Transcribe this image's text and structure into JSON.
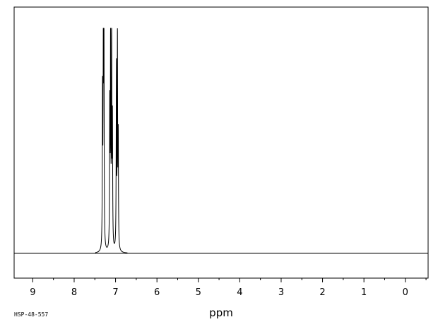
{
  "chart_data": {
    "type": "line",
    "title": "",
    "xlabel": "ppm",
    "ylabel": "",
    "sample_code": "HSP-48-557",
    "x_reversed": true,
    "xlim": [
      9.45,
      -0.55
    ],
    "ylim": [
      -0.1,
      1.0
    ],
    "grid": false,
    "x_ticks": [
      9,
      8,
      7,
      6,
      5,
      4,
      3,
      2,
      1,
      0
    ],
    "tick_labels": [
      "9",
      "8",
      "7",
      "6",
      "5",
      "4",
      "3",
      "2",
      "1",
      "0"
    ],
    "baseline": 0,
    "peaks": [
      {
        "ppm": 7.315,
        "height": 0.68
      },
      {
        "ppm": 7.295,
        "height": 0.97
      },
      {
        "ppm": 7.28,
        "height": 0.88
      },
      {
        "ppm": 7.14,
        "height": 0.62
      },
      {
        "ppm": 7.12,
        "height": 0.95
      },
      {
        "ppm": 7.095,
        "height": 0.93
      },
      {
        "ppm": 7.075,
        "height": 0.55
      },
      {
        "ppm": 6.98,
        "height": 0.8
      },
      {
        "ppm": 6.955,
        "height": 0.92
      },
      {
        "ppm": 6.935,
        "height": 0.48
      }
    ]
  }
}
